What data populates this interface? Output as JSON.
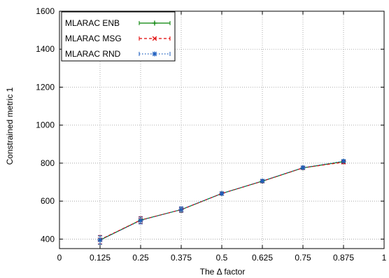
{
  "chart_data": {
    "type": "line",
    "xlabel": "The Δ factor",
    "ylabel": "Constrained metric 1",
    "xlim": [
      0,
      1
    ],
    "ylim": [
      350,
      1600
    ],
    "x_ticks": [
      "0",
      "0.125",
      "0.25",
      "0.375",
      "0.5",
      "0.625",
      "0.75",
      "0.875",
      "1"
    ],
    "y_ticks": [
      "400",
      "600",
      "800",
      "1000",
      "1200",
      "1400",
      "1600"
    ],
    "grid": true,
    "legend_position": "top-left",
    "x": [
      0.125,
      0.25,
      0.375,
      0.5,
      0.625,
      0.75,
      0.875
    ],
    "series": [
      {
        "name": "MLARAC ENB",
        "color": "#008000",
        "marker": "plus",
        "line": "solid",
        "values": [
          395,
          500,
          555,
          640,
          705,
          775,
          808
        ],
        "err": [
          22,
          18,
          14,
          8,
          8,
          8,
          8
        ]
      },
      {
        "name": "MLARAC MSG",
        "color": "#e00000",
        "marker": "cross",
        "line": "dashed",
        "values": [
          397,
          500,
          555,
          640,
          705,
          775,
          805
        ],
        "err": [
          22,
          18,
          14,
          8,
          8,
          8,
          8
        ]
      },
      {
        "name": "MLARAC RND",
        "color": "#1f5fbf",
        "marker": "star",
        "line": "dotted",
        "values": [
          395,
          498,
          556,
          640,
          706,
          776,
          810
        ],
        "err": [
          22,
          18,
          14,
          8,
          8,
          8,
          8
        ]
      }
    ]
  }
}
